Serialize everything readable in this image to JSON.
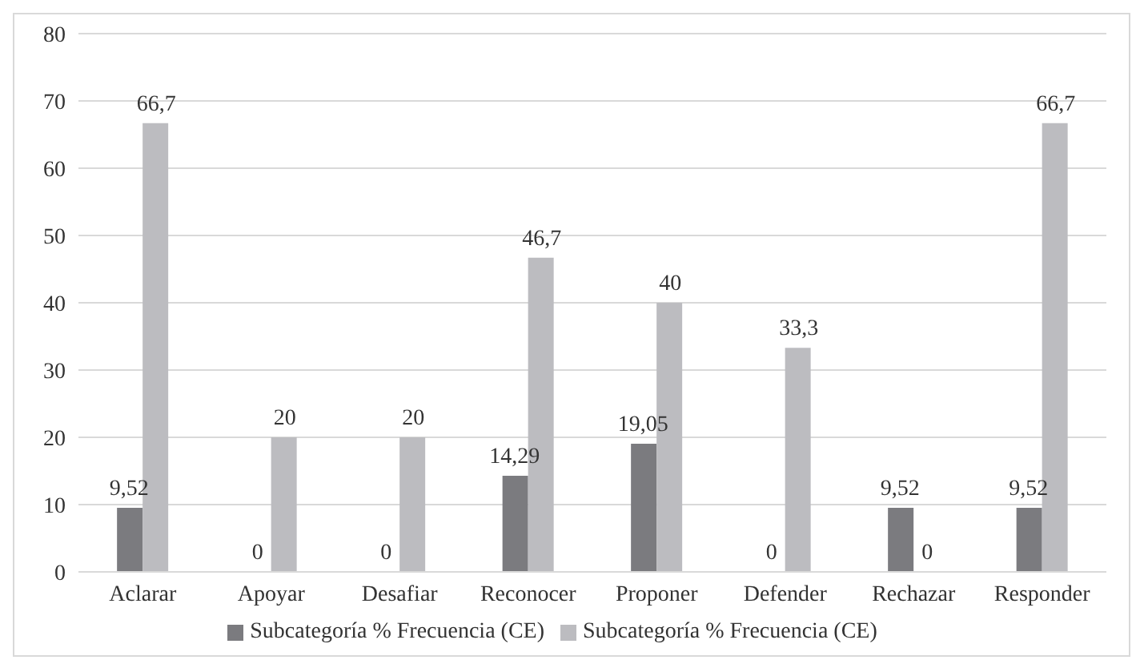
{
  "chart_data": {
    "type": "bar",
    "categories": [
      "Aclarar",
      "Apoyar",
      "Desafiar",
      "Reconocer",
      "Proponer",
      "Defender",
      "Rechazar",
      "Responder"
    ],
    "series": [
      {
        "name": "Subcategoría % Frecuencia (CE)",
        "color": "#7b7b7f",
        "values": [
          9.52,
          0,
          0,
          14.29,
          19.05,
          0,
          9.52,
          9.52
        ],
        "value_labels": [
          "9,52",
          "0",
          "0",
          "14,29",
          "19,05",
          "0",
          "9,52",
          "9,52"
        ]
      },
      {
        "name": "Subcategoría % Frecuencia (CE)",
        "color": "#bcbcc0",
        "values": [
          66.7,
          20,
          20,
          46.7,
          40,
          33.3,
          0,
          66.7
        ],
        "value_labels": [
          "66,7",
          "20",
          "20",
          "46,7",
          "40",
          "33,3",
          "0",
          "66,7"
        ]
      }
    ],
    "ylim": [
      0,
      80
    ],
    "yticks": [
      0,
      10,
      20,
      30,
      40,
      50,
      60,
      70,
      80
    ],
    "grid": "y",
    "legend": "bottom"
  }
}
